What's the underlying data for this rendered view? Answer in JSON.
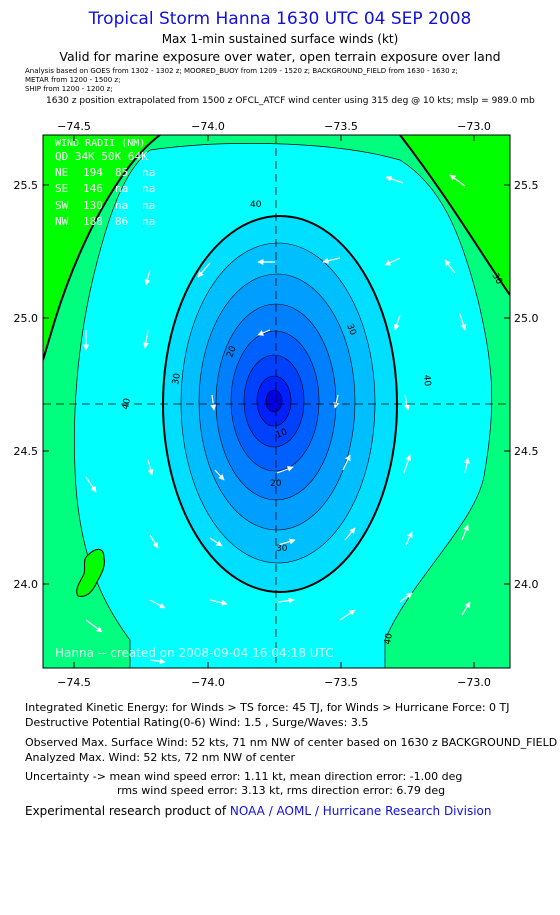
{
  "header": {
    "title": "Tropical Storm Hanna 1630 UTC 04 SEP 2008",
    "subtitle": "Max 1-min sustained surface winds (kt)",
    "validity": "Valid for marine exposure over water, open terrain exposure over land",
    "analysis_line1": "Analysis based on   GOES from 1302 - 1302 z;   MOORED_BUOY from 1209 - 1520 z;   BACKGROUND_FIELD from 1630 - 1630 z;",
    "analysis_line2": "METAR from 1200 - 1500 z;",
    "analysis_line3": "SHIP from 1200 - 1200 z;",
    "extrapolation": "1630 z position extrapolated from 1500 z OFCL_ATCF wind center using 315 deg @ 10 kts; mslp = 989.0 mb"
  },
  "map": {
    "lon_ticks": [
      "−74.5",
      "−74.0",
      "−73.5",
      "−73.0"
    ],
    "lat_ticks": [
      "25.5",
      "25.0",
      "24.5",
      "24.0"
    ],
    "center": {
      "lon": -73.7,
      "lat": 24.68
    },
    "contour_labels": [
      "40",
      "30",
      "30",
      "40",
      "30",
      "20",
      "20",
      "10",
      "30",
      "40",
      "40"
    ],
    "wind_radii": {
      "title": "WIND RADII (NM)",
      "header": "QD  34K  50K  64K",
      "rows": [
        {
          "qd": "NE",
          "r34": "194",
          "r50": "85",
          "r64": "na"
        },
        {
          "qd": "SE",
          "r34": "146",
          "r50": "na",
          "r64": "na"
        },
        {
          "qd": "SW",
          "r34": "130",
          "r50": "na",
          "r64": "na"
        },
        {
          "qd": "NW",
          "r34": "188",
          "r50": "86",
          "r64": "na"
        }
      ]
    },
    "created": "Hanna -- created on 2008-09-04 16:04:18 UTC",
    "colors": {
      "green": "#00ff00",
      "spring_green": "#00ff7f",
      "cyan": "#00ffff",
      "sky": "#00bfff",
      "blue": "#0070ff",
      "deep": "#0000ff"
    }
  },
  "footer": {
    "ike": "Integrated Kinetic Energy:  for Winds > TS force: 45 TJ,  for Winds > Hurricane Force: 0 TJ",
    "dpr": "Destructive Potential Rating(0-6)   Wind: 1.5 , Surge/Waves: 3.5",
    "obs_max": "Observed Max. Surface Wind: 52 kts, 71 nm NW of center based on 1630 z BACKGROUND_FIELD",
    "analyzed_max": "Analyzed Max. Wind: 52 kts, 72 nm NW of center",
    "uncertainty1": "Uncertainty -> mean wind speed error: 1.11 kt,   mean direction error:  -1.00 deg",
    "uncertainty2": "rms wind speed error: 3.13 kt,   rms direction error: 6.79 deg",
    "credit_prefix": "Experimental research product of ",
    "credit_link": "NOAA / AOML / Hurricane Research Division"
  }
}
